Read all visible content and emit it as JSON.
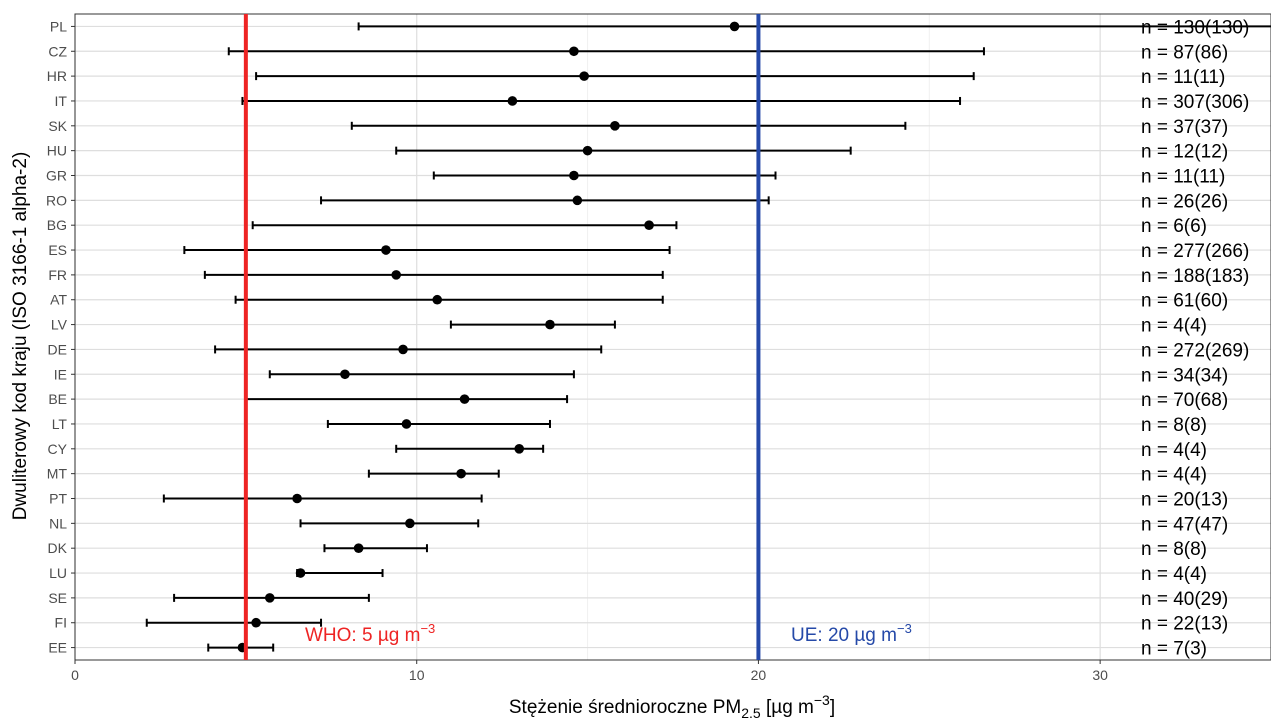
{
  "chart_data": {
    "type": "errorbar",
    "xlabel": {
      "prefix": "Stężenie średnioroczne PM",
      "sub": "2.5",
      "middle": " [µg m",
      "sup": "−3",
      "suffix": "]"
    },
    "ylabel": "Dwuliterowy kod kraju (ISO 3166-1 alpha-2)",
    "xlim": [
      0,
      35
    ],
    "x_ticks": [
      0,
      10,
      20,
      30
    ],
    "grid": true,
    "categories": [
      "PL",
      "CZ",
      "HR",
      "IT",
      "SK",
      "HU",
      "GR",
      "RO",
      "BG",
      "ES",
      "FR",
      "AT",
      "LV",
      "DE",
      "IE",
      "BE",
      "LT",
      "CY",
      "MT",
      "PT",
      "NL",
      "DK",
      "LU",
      "SE",
      "FI",
      "EE"
    ],
    "mean": [
      19.3,
      14.6,
      14.9,
      12.8,
      15.8,
      15.0,
      14.6,
      14.7,
      16.8,
      9.1,
      9.4,
      10.6,
      13.9,
      9.6,
      7.9,
      11.4,
      9.7,
      13.0,
      11.3,
      6.5,
      9.8,
      8.3,
      6.6,
      5.7,
      5.3,
      4.9
    ],
    "lower": [
      8.3,
      4.5,
      5.3,
      4.9,
      8.1,
      9.4,
      10.5,
      7.2,
      5.2,
      3.2,
      3.8,
      4.7,
      11.0,
      4.1,
      5.7,
      5.0,
      7.4,
      9.4,
      8.6,
      2.6,
      6.6,
      7.3,
      6.5,
      2.9,
      2.1,
      3.9
    ],
    "upper": [
      35.5,
      26.6,
      26.3,
      25.9,
      24.3,
      22.7,
      20.5,
      20.3,
      17.6,
      17.4,
      17.2,
      17.2,
      15.8,
      15.4,
      14.6,
      14.4,
      13.9,
      13.7,
      12.4,
      11.9,
      11.8,
      10.3,
      9.0,
      8.6,
      7.2,
      5.8
    ],
    "n_labels": [
      "n = 130(130)",
      "n = 87(86)",
      "n = 11(11)",
      "n = 307(306)",
      "n = 37(37)",
      "n = 12(12)",
      "n = 11(11)",
      "n = 26(26)",
      "n = 6(6)",
      "n = 277(266)",
      "n = 188(183)",
      "n = 61(60)",
      "n = 4(4)",
      "n = 272(269)",
      "n = 34(34)",
      "n = 70(68)",
      "n = 8(8)",
      "n = 4(4)",
      "n = 4(4)",
      "n = 20(13)",
      "n = 47(47)",
      "n = 8(8)",
      "n = 4(4)",
      "n = 40(29)",
      "n = 22(13)",
      "n = 7(3)"
    ],
    "reference_lines": [
      {
        "value": 5,
        "color": "#ee2424",
        "label_text": "WHO: 5 µg m",
        "label_sup": "−3"
      },
      {
        "value": 20,
        "color": "#2549a8",
        "label_text": "UE: 20 µg m",
        "label_sup": "−3"
      }
    ]
  }
}
